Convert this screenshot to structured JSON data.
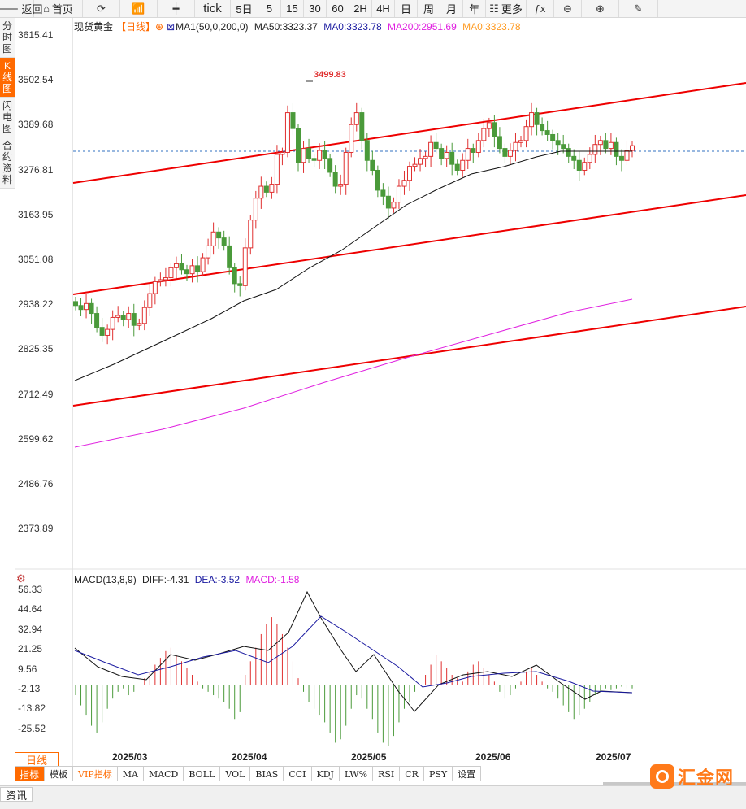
{
  "toolbar": {
    "items": [
      {
        "label": "返回",
        "icon": "back-arrow-icon",
        "glyph": "🡐"
      },
      {
        "label": "首页",
        "icon": "home-icon",
        "glyph": "⌂"
      },
      {
        "label": "",
        "icon": "refresh-icon",
        "glyph": "⟳"
      },
      {
        "label": "",
        "icon": "bar-chart-icon",
        "glyph": "📶"
      },
      {
        "label": "",
        "icon": "candlestick-icon",
        "glyph": "┿"
      },
      {
        "label": "tick",
        "icon": "",
        "glyph": ""
      },
      {
        "label": "5日",
        "icon": "",
        "glyph": ""
      },
      {
        "label": "5",
        "icon": "",
        "glyph": ""
      },
      {
        "label": "15",
        "icon": "",
        "glyph": ""
      },
      {
        "label": "30",
        "icon": "",
        "glyph": ""
      },
      {
        "label": "60",
        "icon": "",
        "glyph": ""
      },
      {
        "label": "2H",
        "icon": "",
        "glyph": ""
      },
      {
        "label": "4H",
        "icon": "",
        "glyph": ""
      },
      {
        "label": "日",
        "icon": "",
        "glyph": ""
      },
      {
        "label": "周",
        "icon": "",
        "glyph": ""
      },
      {
        "label": "月",
        "icon": "",
        "glyph": ""
      },
      {
        "label": "年",
        "icon": "",
        "glyph": ""
      },
      {
        "label": "更多",
        "icon": "more-grid-icon",
        "glyph": "☷"
      },
      {
        "label": "",
        "icon": "function-fx-icon",
        "glyph": "ƒx"
      },
      {
        "label": "",
        "icon": "zoom-out-icon",
        "glyph": "⊖"
      },
      {
        "label": "",
        "icon": "zoom-in-icon",
        "glyph": "⊕"
      },
      {
        "label": "",
        "icon": "draw-pen-icon",
        "glyph": "✎"
      }
    ]
  },
  "left_tabs": [
    {
      "label": "分时图",
      "active": false
    },
    {
      "label": "K线图",
      "active": true
    },
    {
      "label": "闪电图",
      "active": false
    },
    {
      "label": "合约资料",
      "active": false
    }
  ],
  "legend": {
    "symbol": "现货黄金",
    "period": "【日线】",
    "settings_glyph": "⊕",
    "indicator_glyph": "⊠",
    "ma1": "MA1(50,0,200,0)",
    "ma50": "MA50:3323.37",
    "ma0a": "MA0:3323.78",
    "ma200": "MA200:2951.69",
    "ma0b": "MA0:3323.78"
  },
  "peak_label": "3499.83",
  "macd_legend": {
    "title": "MACD(13,8,9)",
    "diff": "DIFF:-4.31",
    "dea": "DEA:-3.52",
    "macd": "MACD:-1.58"
  },
  "colors": {
    "up": "#e03030",
    "down": "#4a9a3a",
    "ma50": "#111111",
    "ma200": "#e020e0",
    "trend": "#ee0000",
    "dea": "#1a1aa0",
    "accent": "#ff6a00"
  },
  "chart_data": [
    {
      "type": "candlestick",
      "title": "现货黄金【日线】",
      "y_ticks": [
        "3615.41",
        "3502.54",
        "3389.68",
        "3276.81",
        "3163.95",
        "3051.08",
        "2938.22",
        "2825.35",
        "2712.49",
        "2599.62",
        "2486.76",
        "2373.89"
      ],
      "x_ticks": [
        "2025/03",
        "2025/04",
        "2025/05",
        "2025/06",
        "2025/07"
      ],
      "last_price": 3337,
      "peak": 3499.83,
      "ma50_last": 3323.37,
      "ma200_last": 2951.69
    },
    {
      "type": "line",
      "title": "MACD(13,8,9)",
      "y_ticks": [
        "56.33",
        "44.64",
        "32.94",
        "21.25",
        "9.56",
        "-2.13",
        "-13.82",
        "-25.52"
      ],
      "diff_last": -4.31,
      "dea_last": -3.52,
      "macd_last": -1.58
    }
  ],
  "period_button": "日线",
  "indicator_tabs": [
    {
      "label": "指标",
      "active": true,
      "vip": false
    },
    {
      "label": "模板",
      "active": false,
      "vip": false
    },
    {
      "label": "VIP指标",
      "active": false,
      "vip": true
    },
    {
      "label": "MA",
      "active": false,
      "vip": false
    },
    {
      "label": "MACD",
      "active": false,
      "vip": false
    },
    {
      "label": "BOLL",
      "active": false,
      "vip": false
    },
    {
      "label": "VOL",
      "active": false,
      "vip": false
    },
    {
      "label": "BIAS",
      "active": false,
      "vip": false
    },
    {
      "label": "CCI",
      "active": false,
      "vip": false
    },
    {
      "label": "KDJ",
      "active": false,
      "vip": false
    },
    {
      "label": "LW%",
      "active": false,
      "vip": false
    },
    {
      "label": "RSI",
      "active": false,
      "vip": false
    },
    {
      "label": "CR",
      "active": false,
      "vip": false
    },
    {
      "label": "PSY",
      "active": false,
      "vip": false
    },
    {
      "label": "设置",
      "active": false,
      "vip": false
    }
  ],
  "bottom_tab": "资讯",
  "logo_text": "汇金网"
}
